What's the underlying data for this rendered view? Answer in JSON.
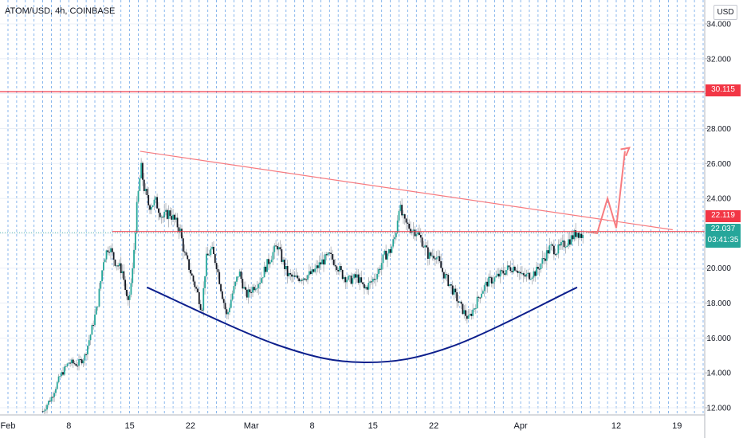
{
  "chart_data": {
    "type": "candlestick",
    "title": "ATOM/USD, 4h, COINBASE",
    "unit_label": "USD",
    "y_ticks": [
      "12.000",
      "14.000",
      "16.000",
      "18.000",
      "20.000",
      "22.000",
      "24.000",
      "26.000",
      "28.000",
      "30.000",
      "32.000",
      "34.000"
    ],
    "ylim": [
      11.6,
      35.5
    ],
    "x_ticks": [
      {
        "label": "Feb",
        "day": 1
      },
      {
        "label": "8",
        "day": 8
      },
      {
        "label": "15",
        "day": 15
      },
      {
        "label": "22",
        "day": 22
      },
      {
        "label": "Mar",
        "day": 29
      },
      {
        "label": "8",
        "day": 36
      },
      {
        "label": "15",
        "day": 43
      },
      {
        "label": "22",
        "day": 50
      },
      {
        "label": "Apr",
        "day": 60
      },
      {
        "label": "12",
        "day": 71
      },
      {
        "label": "19",
        "day": 78
      }
    ],
    "xlim": [
      1,
      83
    ],
    "grid": true,
    "price_path": [
      [
        5.0,
        11.8
      ],
      [
        6.0,
        12.6
      ],
      [
        7.0,
        13.8
      ],
      [
        8.0,
        14.6
      ],
      [
        9.0,
        14.5
      ],
      [
        9.8,
        14.9
      ],
      [
        10.5,
        16.2
      ],
      [
        11.3,
        17.9
      ],
      [
        12.0,
        20.5
      ],
      [
        12.6,
        21.3
      ],
      [
        13.3,
        20.4
      ],
      [
        14.2,
        19.8
      ],
      [
        14.8,
        17.8
      ],
      [
        15.3,
        19.6
      ],
      [
        15.8,
        23.3
      ],
      [
        16.3,
        25.8
      ],
      [
        16.7,
        24.5
      ],
      [
        17.2,
        23.6
      ],
      [
        18.0,
        23.8
      ],
      [
        18.8,
        22.9
      ],
      [
        19.6,
        23.2
      ],
      [
        20.2,
        22.7
      ],
      [
        20.8,
        22.2
      ],
      [
        21.3,
        20.8
      ],
      [
        21.8,
        20.1
      ],
      [
        22.3,
        19.3
      ],
      [
        22.8,
        18.6
      ],
      [
        23.3,
        17.6
      ],
      [
        23.8,
        20.5
      ],
      [
        24.4,
        21.1
      ],
      [
        25.0,
        20.2
      ],
      [
        25.6,
        18.6
      ],
      [
        26.2,
        17.2
      ],
      [
        26.8,
        18.5
      ],
      [
        27.6,
        19.8
      ],
      [
        28.4,
        18.4
      ],
      [
        29.2,
        18.9
      ],
      [
        30.0,
        19.3
      ],
      [
        30.7,
        20.1
      ],
      [
        31.4,
        20.8
      ],
      [
        32.0,
        21.3
      ],
      [
        32.6,
        20.4
      ],
      [
        33.2,
        19.6
      ],
      [
        34.0,
        19.4
      ],
      [
        35.0,
        19.5
      ],
      [
        36.0,
        19.7
      ],
      [
        37.2,
        20.4
      ],
      [
        38.0,
        20.7
      ],
      [
        38.7,
        20.3
      ],
      [
        39.5,
        19.6
      ],
      [
        40.3,
        19.3
      ],
      [
        41.2,
        19.5
      ],
      [
        42.0,
        18.8
      ],
      [
        42.8,
        19.2
      ],
      [
        43.6,
        19.8
      ],
      [
        44.3,
        20.7
      ],
      [
        45.0,
        21.0
      ],
      [
        45.6,
        21.9
      ],
      [
        46.0,
        23.6
      ],
      [
        46.6,
        22.6
      ],
      [
        47.3,
        22.3
      ],
      [
        48.0,
        22.1
      ],
      [
        48.7,
        21.5
      ],
      [
        49.4,
        20.7
      ],
      [
        50.2,
        20.8
      ],
      [
        51.0,
        19.8
      ],
      [
        51.8,
        19.1
      ],
      [
        52.6,
        18.3
      ],
      [
        53.3,
        17.6
      ],
      [
        54.0,
        17.1
      ],
      [
        54.7,
        17.8
      ],
      [
        55.4,
        18.6
      ],
      [
        56.2,
        19.2
      ],
      [
        57.0,
        19.4
      ],
      [
        57.8,
        19.7
      ],
      [
        58.6,
        20.0
      ],
      [
        59.4,
        20.1
      ],
      [
        60.2,
        19.5
      ],
      [
        61.0,
        19.6
      ],
      [
        61.8,
        19.8
      ],
      [
        62.6,
        20.5
      ],
      [
        63.4,
        21.2
      ],
      [
        64.2,
        21.0
      ],
      [
        65.0,
        21.4
      ],
      [
        65.8,
        21.7
      ],
      [
        66.5,
        22.1
      ],
      [
        67.2,
        21.8
      ]
    ],
    "annotations": {
      "resistance_price": 30.115,
      "resistance_label": "30.115",
      "neckline_price": 22.1,
      "neckline_start_day": 13.0,
      "neckline_label": "22.119",
      "trendline": [
        [
          16.2,
          26.7
        ],
        [
          77.5,
          22.2
        ]
      ],
      "cup_curve": [
        [
          17.0,
          18.9
        ],
        [
          32.0,
          15.6
        ],
        [
          42.0,
          14.6
        ],
        [
          52.0,
          15.5
        ],
        [
          66.5,
          18.9
        ]
      ],
      "projection_path": [
        [
          67.5,
          22.1
        ],
        [
          68.8,
          22.0
        ],
        [
          70.0,
          24.0
        ],
        [
          71.0,
          22.3
        ],
        [
          72.0,
          26.7
        ]
      ],
      "projection_arrow_tip": [
        72.5,
        26.9
      ],
      "last_price": "22.037",
      "countdown": "03:41:35"
    },
    "colors": {
      "up_candle": "#26a69a",
      "down_candle": "#131722",
      "resistance": "#f23645",
      "trendline": "#f77c80",
      "cup": "#0d1f8c",
      "projection": "#f77c80",
      "grid": "#6ba5e8",
      "last_price_tag": "#26a69a",
      "price_tag": "#f23645"
    }
  }
}
